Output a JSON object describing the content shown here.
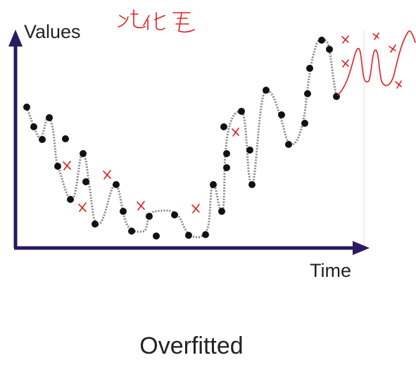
{
  "axes": {
    "y_label": "Values",
    "x_label": "Time"
  },
  "caption": "Overfitted"
}
